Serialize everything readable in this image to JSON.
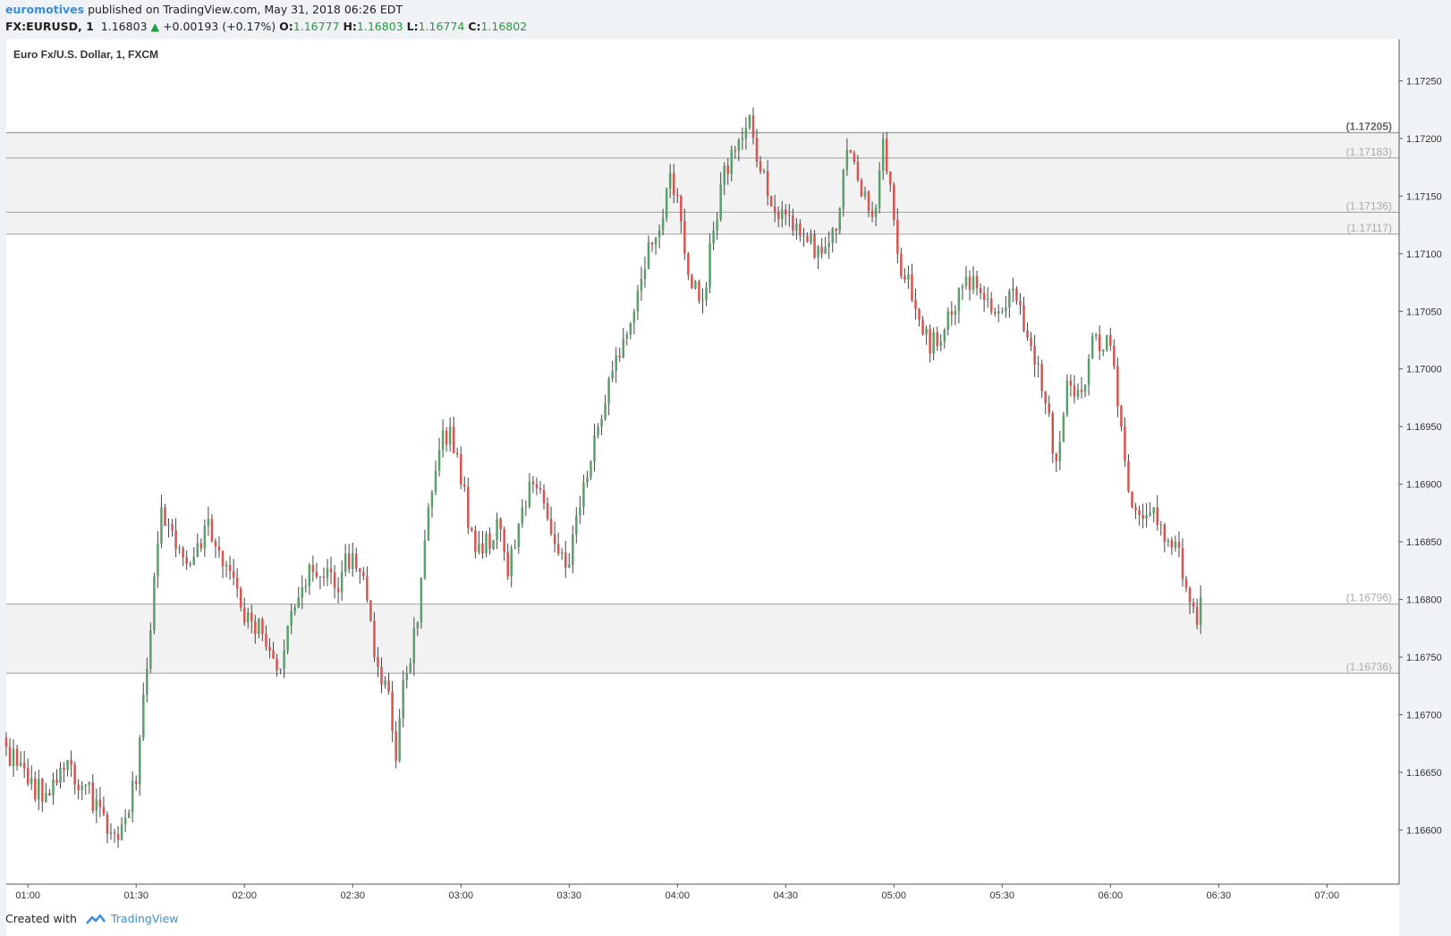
{
  "header": {
    "author": "euromotives",
    "published": "published on TradingView.com, May 31, 2018 06:26 EDT",
    "symbol": "FX:EURUSD, 1",
    "last": "1.16803",
    "change_arrow": "▲",
    "change": "+0.00193 (+0.17%)",
    "o_label": "O:",
    "o_value": "1.16777",
    "h_label": "H:",
    "h_value": "1.16803",
    "l_label": "L:",
    "l_value": "1.16774",
    "c_label": "C:",
    "c_value": "1.16802"
  },
  "footer": {
    "created_with": "Created with",
    "brand": "TradingView",
    "brand_icon": "tradingview-logo-icon"
  },
  "colors": {
    "up": "#5a9f6c",
    "down": "#d9534f",
    "zone_fill": "#f2f2f2",
    "level_line": "#9e9e9e",
    "accent": "#3a8fd6"
  },
  "chart_data": {
    "type": "candlestick",
    "title": "Euro Fx/U.S. Dollar, 1, FXCM",
    "ylim": [
      1.16553,
      1.17286
    ],
    "y_ticks": [
      "1.16600",
      "1.16650",
      "1.16700",
      "1.16750",
      "1.16800",
      "1.16850",
      "1.16900",
      "1.16950",
      "1.17000",
      "1.17050",
      "1.17100",
      "1.17150",
      "1.17200",
      "1.17250"
    ],
    "x_ticks": [
      "01:00",
      "01:30",
      "02:00",
      "02:30",
      "03:00",
      "03:30",
      "04:00",
      "04:30",
      "05:00",
      "05:30",
      "06:00",
      "06:30",
      "07:00"
    ],
    "x_range": [
      "00:54",
      "07:20"
    ],
    "bar_interval_minutes": 1,
    "zones": [
      {
        "from": 1.17183,
        "to": 1.17205
      },
      {
        "from": 1.17136,
        "to": 1.17183
      },
      {
        "from": 1.17117,
        "to": 1.17136
      },
      {
        "from": 1.16736,
        "to": 1.16796
      }
    ],
    "levels": [
      {
        "value": 1.17205,
        "label": "(1.17205)",
        "emphasis": true
      },
      {
        "value": 1.17183,
        "label": "(1.17183)",
        "emphasis": false
      },
      {
        "value": 1.17136,
        "label": "(1.17136)",
        "emphasis": false
      },
      {
        "value": 1.17117,
        "label": "(1.17117)",
        "emphasis": false
      },
      {
        "value": 1.16796,
        "label": "(1.16796)",
        "emphasis": false
      },
      {
        "value": 1.16736,
        "label": "(1.16736)",
        "emphasis": false
      }
    ],
    "close_anchors": [
      [
        "00:54",
        1.16672
      ],
      [
        "01:00",
        1.1664
      ],
      [
        "01:05",
        1.16632
      ],
      [
        "01:10",
        1.16652
      ],
      [
        "01:15",
        1.16638
      ],
      [
        "01:20",
        1.1662
      ],
      [
        "01:23",
        1.16598
      ],
      [
        "01:26",
        1.16605
      ],
      [
        "01:30",
        1.1664
      ],
      [
        "01:33",
        1.1674
      ],
      [
        "01:35",
        1.1682
      ],
      [
        "01:37",
        1.1688
      ],
      [
        "01:40",
        1.1686
      ],
      [
        "01:45",
        1.1683
      ],
      [
        "01:50",
        1.1687
      ],
      [
        "01:55",
        1.1683
      ],
      [
        "02:00",
        1.1678
      ],
      [
        "02:05",
        1.1677
      ],
      [
        "02:10",
        1.1674
      ],
      [
        "02:13",
        1.1679
      ],
      [
        "02:18",
        1.1683
      ],
      [
        "02:25",
        1.1681
      ],
      [
        "02:30",
        1.1684
      ],
      [
        "02:33",
        1.1682
      ],
      [
        "02:36",
        1.1675
      ],
      [
        "02:40",
        1.1672
      ],
      [
        "02:42",
        1.1666
      ],
      [
        "02:44",
        1.1673
      ],
      [
        "02:48",
        1.1678
      ],
      [
        "02:51",
        1.1688
      ],
      [
        "02:54",
        1.1693
      ],
      [
        "02:57",
        1.1695
      ],
      [
        "03:00",
        1.169
      ],
      [
        "03:03",
        1.1686
      ],
      [
        "03:06",
        1.1684
      ],
      [
        "03:10",
        1.1687
      ],
      [
        "03:13",
        1.1682
      ],
      [
        "03:17",
        1.1688
      ],
      [
        "03:20",
        1.169
      ],
      [
        "03:24",
        1.1687
      ],
      [
        "03:27",
        1.1684
      ],
      [
        "03:30",
        1.1683
      ],
      [
        "03:33",
        1.1688
      ],
      [
        "03:36",
        1.1692
      ],
      [
        "03:40",
        1.1697
      ],
      [
        "03:44",
        1.1701
      ],
      [
        "03:48",
        1.1705
      ],
      [
        "03:52",
        1.1711
      ],
      [
        "03:55",
        1.1712
      ],
      [
        "03:58",
        1.1717
      ],
      [
        "04:00",
        1.1715
      ],
      [
        "04:02",
        1.171
      ],
      [
        "04:04",
        1.1707
      ],
      [
        "04:07",
        1.1706
      ],
      [
        "04:10",
        1.1712
      ],
      [
        "04:12",
        1.1716
      ],
      [
        "04:15",
        1.1719
      ],
      [
        "04:18",
        1.172
      ],
      [
        "04:20",
        1.1722
      ],
      [
        "04:22",
        1.1718
      ],
      [
        "04:25",
        1.1715
      ],
      [
        "04:28",
        1.1713
      ],
      [
        "04:32",
        1.1712
      ],
      [
        "04:36",
        1.1711
      ],
      [
        "04:40",
        1.171
      ],
      [
        "04:44",
        1.1712
      ],
      [
        "04:47",
        1.1719
      ],
      [
        "04:51",
        1.1715
      ],
      [
        "04:55",
        1.1714
      ],
      [
        "04:57",
        1.172
      ],
      [
        "04:59",
        1.1716
      ],
      [
        "05:01",
        1.171
      ],
      [
        "05:05",
        1.1706
      ],
      [
        "05:08",
        1.1703
      ],
      [
        "05:12",
        1.1702
      ],
      [
        "05:15",
        1.1705
      ],
      [
        "05:20",
        1.1708
      ],
      [
        "05:25",
        1.1706
      ],
      [
        "05:30",
        1.1705
      ],
      [
        "05:33",
        1.1707
      ],
      [
        "05:38",
        1.1702
      ],
      [
        "05:42",
        1.1697
      ],
      [
        "05:45",
        1.1692
      ],
      [
        "05:48",
        1.1699
      ],
      [
        "05:52",
        1.1698
      ],
      [
        "05:56",
        1.1703
      ],
      [
        "06:00",
        1.1702
      ],
      [
        "06:03",
        1.1695
      ],
      [
        "06:06",
        1.1688
      ],
      [
        "06:09",
        1.1687
      ],
      [
        "06:12",
        1.1688
      ],
      [
        "06:15",
        1.1685
      ],
      [
        "06:18",
        1.1685
      ],
      [
        "06:21",
        1.1681
      ],
      [
        "06:24",
        1.16778
      ],
      [
        "06:25",
        1.16802
      ]
    ]
  }
}
